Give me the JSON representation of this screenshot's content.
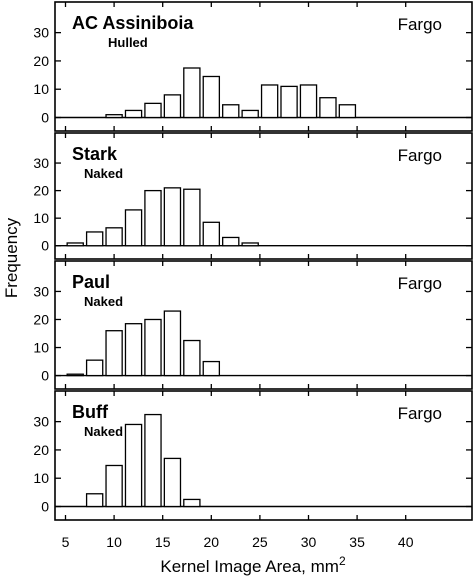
{
  "chart_data": {
    "type": "bar",
    "xlabel": "Kernel Image Area, mm",
    "xlabel_superscript": "2",
    "ylabel": "Frequency",
    "xlim": [
      4,
      42
    ],
    "ylim": [
      -3,
      38
    ],
    "x_ticks": [
      "5",
      "10",
      "15",
      "20",
      "25",
      "30",
      "35",
      "40"
    ],
    "y_ticks": [
      "0",
      "10",
      "20",
      "30"
    ],
    "bin_width": 2,
    "grid": false,
    "panels": [
      {
        "title": "AC Assiniboia",
        "subtitle": "Hulled",
        "location": "Fargo",
        "x": [
          10,
          12,
          14,
          16,
          18,
          20,
          22,
          24,
          26,
          28,
          30,
          32,
          34
        ],
        "values": [
          1,
          2.5,
          5,
          8,
          17.5,
          14.5,
          4.5,
          2.5,
          11.5,
          11,
          11.5,
          7,
          4.5
        ]
      },
      {
        "title": "Stark",
        "subtitle": "Naked",
        "location": "Fargo",
        "x": [
          6,
          8,
          10,
          12,
          14,
          16,
          18,
          20,
          22,
          24
        ],
        "values": [
          1,
          5,
          6.5,
          13,
          20,
          21,
          20.5,
          8.5,
          3,
          1
        ]
      },
      {
        "title": "Paul",
        "subtitle": "Naked",
        "location": "Fargo",
        "x": [
          6,
          8,
          10,
          12,
          14,
          16,
          18,
          20
        ],
        "values": [
          0.5,
          5.5,
          16,
          18.5,
          20,
          23,
          12.5,
          5
        ]
      },
      {
        "title": "Buff",
        "subtitle": "Naked",
        "location": "Fargo",
        "x": [
          8,
          10,
          12,
          14,
          16,
          18
        ],
        "values": [
          4.5,
          14.5,
          29,
          32.5,
          17,
          2.5
        ]
      }
    ]
  }
}
